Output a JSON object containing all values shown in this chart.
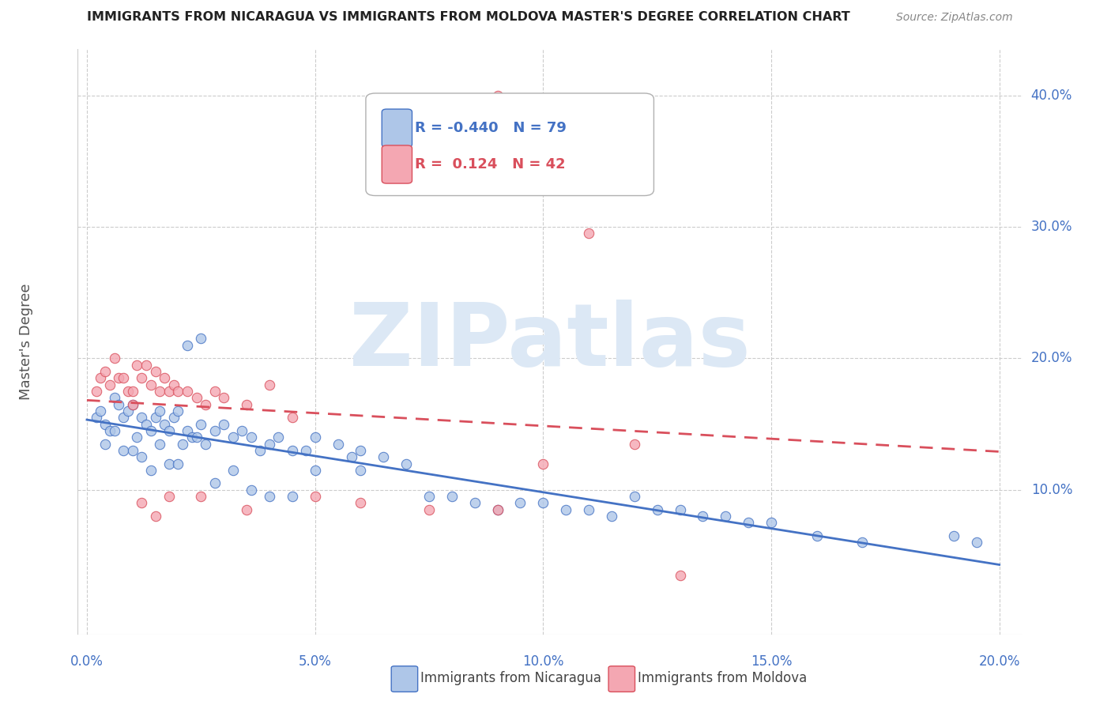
{
  "title": "IMMIGRANTS FROM NICARAGUA VS IMMIGRANTS FROM MOLDOVA MASTER'S DEGREE CORRELATION CHART",
  "source": "Source: ZipAtlas.com",
  "ylabel": "Master's Degree",
  "nic_color": "#aec6e8",
  "mol_color": "#f4a7b2",
  "nic_line_color": "#4472c4",
  "mol_line_color": "#d94f5c",
  "watermark_color": "#dce8f5",
  "background_color": "#ffffff",
  "grid_color": "#cccccc",
  "tick_label_color": "#4472c4",
  "title_color": "#222222",
  "source_color": "#888888",
  "ylabel_color": "#555555",
  "marker_size": 80,
  "xlim": [
    -0.002,
    0.205
  ],
  "ylim": [
    -0.01,
    0.435
  ],
  "ytick_values": [
    0.1,
    0.2,
    0.3,
    0.4
  ],
  "ytick_labels": [
    "10.0%",
    "20.0%",
    "30.0%",
    "40.0%"
  ],
  "xtick_values": [
    0.0,
    0.05,
    0.1,
    0.15,
    0.2
  ],
  "xtick_labels": [
    "0.0%",
    "5.0%",
    "10.0%",
    "15.0%",
    "20.0%"
  ],
  "nicaragua_x": [
    0.002,
    0.003,
    0.004,
    0.005,
    0.006,
    0.007,
    0.008,
    0.009,
    0.01,
    0.011,
    0.012,
    0.013,
    0.014,
    0.015,
    0.016,
    0.017,
    0.018,
    0.019,
    0.02,
    0.021,
    0.022,
    0.023,
    0.024,
    0.025,
    0.026,
    0.028,
    0.03,
    0.032,
    0.034,
    0.036,
    0.038,
    0.04,
    0.042,
    0.045,
    0.048,
    0.05,
    0.055,
    0.058,
    0.06,
    0.065,
    0.07,
    0.075,
    0.08,
    0.085,
    0.09,
    0.095,
    0.1,
    0.105,
    0.11,
    0.115,
    0.12,
    0.125,
    0.13,
    0.135,
    0.14,
    0.145,
    0.15,
    0.16,
    0.17,
    0.19,
    0.195,
    0.004,
    0.006,
    0.008,
    0.01,
    0.012,
    0.014,
    0.016,
    0.018,
    0.02,
    0.022,
    0.025,
    0.028,
    0.032,
    0.036,
    0.04,
    0.045,
    0.05,
    0.06
  ],
  "nicaragua_y": [
    0.155,
    0.16,
    0.15,
    0.145,
    0.17,
    0.165,
    0.155,
    0.16,
    0.165,
    0.14,
    0.155,
    0.15,
    0.145,
    0.155,
    0.16,
    0.15,
    0.145,
    0.155,
    0.16,
    0.135,
    0.145,
    0.14,
    0.14,
    0.15,
    0.135,
    0.145,
    0.15,
    0.14,
    0.145,
    0.14,
    0.13,
    0.135,
    0.14,
    0.13,
    0.13,
    0.14,
    0.135,
    0.125,
    0.13,
    0.125,
    0.12,
    0.095,
    0.095,
    0.09,
    0.085,
    0.09,
    0.09,
    0.085,
    0.085,
    0.08,
    0.095,
    0.085,
    0.085,
    0.08,
    0.08,
    0.075,
    0.075,
    0.065,
    0.06,
    0.065,
    0.06,
    0.135,
    0.145,
    0.13,
    0.13,
    0.125,
    0.115,
    0.135,
    0.12,
    0.12,
    0.21,
    0.215,
    0.105,
    0.115,
    0.1,
    0.095,
    0.095,
    0.115,
    0.115
  ],
  "moldova_x": [
    0.002,
    0.003,
    0.004,
    0.005,
    0.006,
    0.007,
    0.008,
    0.009,
    0.01,
    0.011,
    0.012,
    0.013,
    0.014,
    0.015,
    0.016,
    0.017,
    0.018,
    0.019,
    0.02,
    0.022,
    0.024,
    0.026,
    0.028,
    0.03,
    0.035,
    0.04,
    0.045,
    0.05,
    0.06,
    0.075,
    0.09,
    0.1,
    0.11,
    0.12,
    0.01,
    0.012,
    0.015,
    0.018,
    0.025,
    0.035,
    0.09,
    0.13
  ],
  "moldova_y": [
    0.175,
    0.185,
    0.19,
    0.18,
    0.2,
    0.185,
    0.185,
    0.175,
    0.175,
    0.195,
    0.185,
    0.195,
    0.18,
    0.19,
    0.175,
    0.185,
    0.175,
    0.18,
    0.175,
    0.175,
    0.17,
    0.165,
    0.175,
    0.17,
    0.165,
    0.18,
    0.155,
    0.095,
    0.09,
    0.085,
    0.085,
    0.12,
    0.295,
    0.135,
    0.165,
    0.09,
    0.08,
    0.095,
    0.095,
    0.085,
    0.4,
    0.035
  ],
  "legend_R_nic": "R = -0.440",
  "legend_N_nic": "N = 79",
  "legend_R_mol": "R =  0.124",
  "legend_N_mol": "N = 42",
  "legend_label_nic": "Immigrants from Nicaragua",
  "legend_label_mol": "Immigrants from Moldova"
}
